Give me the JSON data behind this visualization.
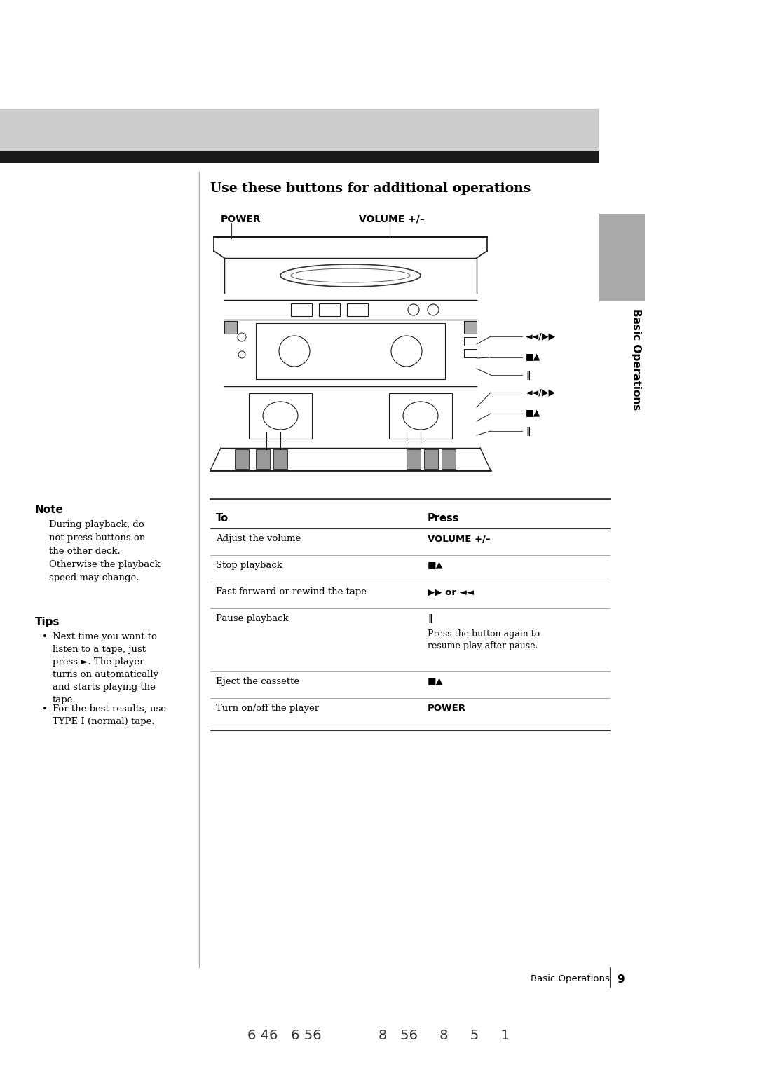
{
  "bg_color": "#ffffff",
  "header_bar_color": "#cccccc",
  "header_bar_dark": "#1a1a1a",
  "sidebar_text": "Basic Operations",
  "title": "Use these buttons for additional operations",
  "power_label": "POWER",
  "volume_label": "VOLUME +/–",
  "note_header": "Note",
  "note_text": "During playback, do\nnot press buttons on\nthe other deck.\nOtherwise the playback\nspeed may change.",
  "tips_header": "Tips",
  "tips_item1_line1": "Next time you want to",
  "tips_item1_line2": "listen to a tape, just",
  "tips_item1_line3": "press ►. The player",
  "tips_item1_line4": "turns on automatically",
  "tips_item1_line5": "and starts playing the",
  "tips_item1_line6": "tape.",
  "tips_item2_line1": "For the best results, use",
  "tips_item2_line2": "TYPE I (normal) tape.",
  "table_header_col1": "To",
  "table_header_col2": "Press",
  "table_row1_col1": "Adjust the volume",
  "table_row1_col2": "VOLUME +/–",
  "table_row2_col1": "Stop playback",
  "table_row2_col2": "■▲",
  "table_row3_col1": "Fast-forward or rewind the tape",
  "table_row3_col2": "▶▶ or ◄◄",
  "table_row4_col1": "Pause playback",
  "table_row4_col2": "‖",
  "table_row4_extra": "Press the button again to\nresume play after pause.",
  "table_row5_col1": "Eject the cassette",
  "table_row5_col2": "■▲",
  "table_row6_col1": "Turn on/off the player",
  "table_row6_col2": "POWER",
  "page_number": "9",
  "page_label": "Basic Operations",
  "bottom_text": "6 46   6 56             8   56     8     5     1",
  "callout_syms": [
    "◄◄/▶▶",
    "■▲",
    "‖",
    "◄◄/▶▶",
    "■▲",
    "‖"
  ]
}
